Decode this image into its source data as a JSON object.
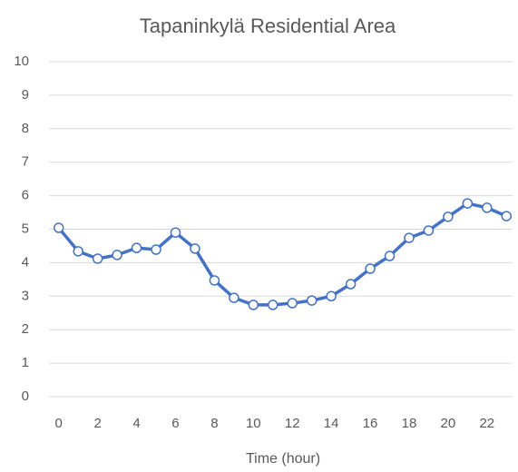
{
  "chart_data": {
    "type": "line",
    "title": "Tapaninkylä Residential Area",
    "x_label": "Time (hour)",
    "categories": [
      "0",
      null,
      "2",
      null,
      "4",
      null,
      "6",
      null,
      "8",
      null,
      "10",
      null,
      "12",
      null,
      "14",
      null,
      "16",
      null,
      "18",
      null,
      "20",
      null,
      "22",
      null
    ],
    "series": [
      {
        "name": "Tapaninkylä",
        "color": "#4472c4",
        "values": [
          5.04,
          4.34,
          4.12,
          4.23,
          4.44,
          4.39,
          4.9,
          4.42,
          3.47,
          2.95,
          2.74,
          2.74,
          2.79,
          2.87,
          3.0,
          3.36,
          3.82,
          4.2,
          4.74,
          4.96,
          5.37,
          5.77,
          5.64,
          5.39
        ]
      }
    ],
    "ylim": [
      0,
      10
    ],
    "yticks": [
      0,
      1,
      2,
      3,
      4,
      5,
      6,
      7,
      8,
      9,
      10
    ],
    "grid": true
  }
}
